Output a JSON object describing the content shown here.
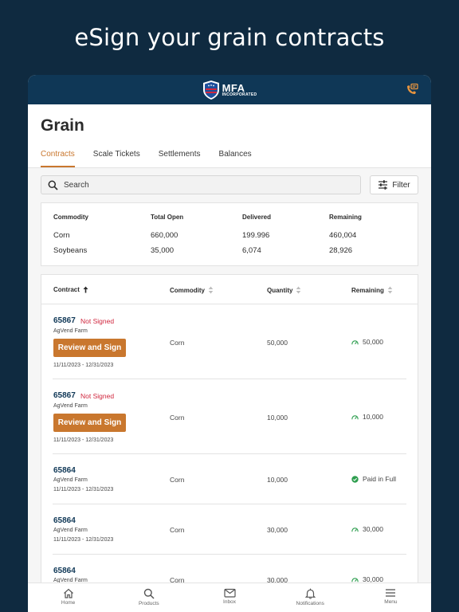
{
  "headline": "eSign your grain contracts",
  "logo": {
    "name": "MFA",
    "sub": "INCORPORATED"
  },
  "page_title": "Grain",
  "tabs": [
    {
      "label": "Contracts",
      "active": true
    },
    {
      "label": "Scale Tickets",
      "active": false
    },
    {
      "label": "Settlements",
      "active": false
    },
    {
      "label": "Balances",
      "active": false
    }
  ],
  "search": {
    "placeholder": "Search"
  },
  "filter": {
    "label": "Filter"
  },
  "summary": {
    "headers": [
      "Commodity",
      "Total Open",
      "Delivered",
      "Remaining"
    ],
    "rows": [
      [
        "Corn",
        "660,000",
        "199.996",
        "460,004"
      ],
      [
        "Soybeans",
        "35,000",
        "6,074",
        "28,926"
      ]
    ]
  },
  "table": {
    "headers": {
      "contract": "Contract",
      "commodity": "Commodity",
      "quantity": "Quantity",
      "remaining": "Remaining"
    },
    "rows": [
      {
        "id": "65867",
        "status": "Not Signed",
        "farm": "AgVend Farm",
        "action": "Review and Sign",
        "dates": "11/11/2023 - 12/31/2023",
        "commodity": "Corn",
        "quantity": "50,000",
        "remaining": "50,000",
        "remaining_icon": "gauge-icon"
      },
      {
        "id": "65867",
        "status": "Not Signed",
        "farm": "AgVend Farm",
        "action": "Review and Sign",
        "dates": "11/11/2023 - 12/31/2023",
        "commodity": "Corn",
        "quantity": "10,000",
        "remaining": "10,000",
        "remaining_icon": "gauge-icon"
      },
      {
        "id": "65864",
        "status": "",
        "farm": "AgVend Farm",
        "action": "",
        "dates": "11/11/2023 - 12/31/2023",
        "commodity": "Corn",
        "quantity": "10,000",
        "remaining": "Paid in Full",
        "remaining_icon": "check-circle-icon"
      },
      {
        "id": "65864",
        "status": "",
        "farm": "AgVend Farm",
        "action": "",
        "dates": "11/11/2023 - 12/31/2023",
        "commodity": "Corn",
        "quantity": "30,000",
        "remaining": "30,000",
        "remaining_icon": "gauge-icon"
      },
      {
        "id": "65864",
        "status": "",
        "farm": "AgVend Farm",
        "action": "",
        "dates": "",
        "commodity": "Corn",
        "quantity": "30,000",
        "remaining": "30,000",
        "remaining_icon": "gauge-icon"
      }
    ]
  },
  "bottom_nav": [
    {
      "label": "Home",
      "icon": "home-icon"
    },
    {
      "label": "Products",
      "icon": "search-icon"
    },
    {
      "label": "Inbox",
      "icon": "mail-icon"
    },
    {
      "label": "Notifications",
      "icon": "bell-icon"
    },
    {
      "label": "Menu",
      "icon": "menu-icon"
    }
  ],
  "colors": {
    "navy": "#0f2a40",
    "appbar": "#0f3756",
    "accent": "#c9772e",
    "not_signed": "#d0273e",
    "success": "#2e9e4f"
  }
}
